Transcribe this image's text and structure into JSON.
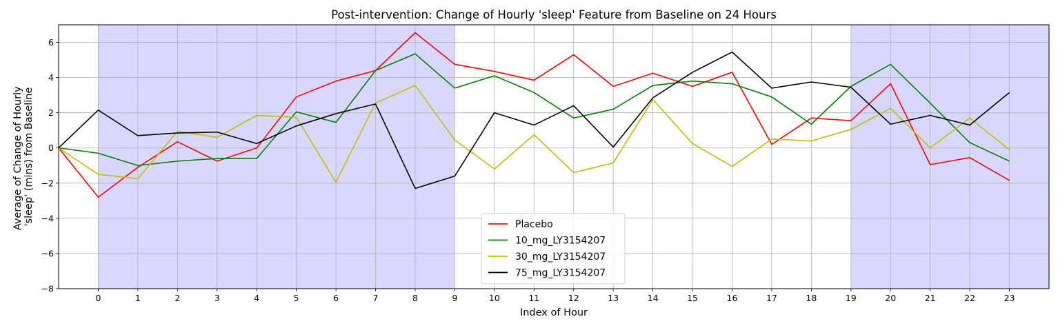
{
  "chart_data": {
    "type": "line",
    "title": "Post-intervention: Change of Hourly 'sleep' Feature from Baseline on 24 Hours",
    "xlabel": "Index of Hour",
    "ylabel_lines": [
      "Average of Change of Hourly",
      "'sleep' (mins) from Baseline"
    ],
    "xlim": [
      -1,
      24
    ],
    "ylim": [
      -8,
      7
    ],
    "x_ticks": [
      0,
      1,
      2,
      3,
      4,
      5,
      6,
      7,
      8,
      9,
      10,
      11,
      12,
      13,
      14,
      15,
      16,
      17,
      18,
      19,
      20,
      21,
      22,
      23
    ],
    "y_ticks": [
      -8,
      -6,
      -4,
      -2,
      0,
      2,
      4,
      6
    ],
    "y_tick_labels": [
      "−8",
      "−6",
      "−4",
      "−2",
      "0",
      "2",
      "4",
      "6"
    ],
    "shaded_ranges": [
      [
        0,
        9
      ],
      [
        19,
        24
      ]
    ],
    "shade_color": "#d8d8ff",
    "grid": true,
    "legend_location": "lower center",
    "x": [
      -1,
      0,
      1,
      2,
      3,
      4,
      5,
      6,
      7,
      8,
      9,
      10,
      11,
      12,
      13,
      14,
      15,
      16,
      17,
      18,
      19,
      20,
      21,
      22,
      23
    ],
    "series": [
      {
        "name": "Placebo",
        "color": "#ff0000",
        "values": [
          0,
          -2.8,
          -1.1,
          0.35,
          -0.75,
          0.0,
          2.9,
          3.8,
          4.4,
          6.55,
          4.75,
          4.35,
          3.85,
          5.3,
          3.5,
          4.25,
          3.5,
          4.3,
          0.2,
          1.7,
          1.55,
          3.65,
          -0.95,
          -0.55,
          -1.85
        ]
      },
      {
        "name": "10_mg_LY3154207",
        "color": "#008000",
        "values": [
          0,
          -0.3,
          -1.0,
          -0.75,
          -0.6,
          -0.6,
          2.05,
          1.45,
          4.4,
          5.35,
          3.4,
          4.1,
          3.15,
          1.7,
          2.2,
          3.55,
          3.8,
          3.65,
          2.9,
          1.35,
          3.5,
          4.75,
          2.55,
          0.3,
          -0.75
        ]
      },
      {
        "name": "30_mg_LY3154207",
        "color": "#bfbf00",
        "values": [
          0,
          -1.5,
          -1.75,
          0.95,
          0.6,
          1.85,
          1.75,
          -1.95,
          2.55,
          3.55,
          0.45,
          -1.2,
          0.75,
          -1.4,
          -0.85,
          2.75,
          0.25,
          -1.05,
          0.5,
          0.4,
          1.05,
          2.25,
          0.0,
          1.7,
          -0.1
        ]
      },
      {
        "name": "75_mg_LY3154207",
        "color": "#000000",
        "values": [
          0,
          2.15,
          0.7,
          0.85,
          0.9,
          0.25,
          1.25,
          1.95,
          2.5,
          -2.3,
          -1.6,
          2.0,
          1.3,
          2.4,
          0.05,
          2.85,
          4.3,
          5.45,
          3.4,
          3.75,
          3.45,
          1.35,
          1.85,
          1.3,
          3.15
        ]
      }
    ]
  }
}
